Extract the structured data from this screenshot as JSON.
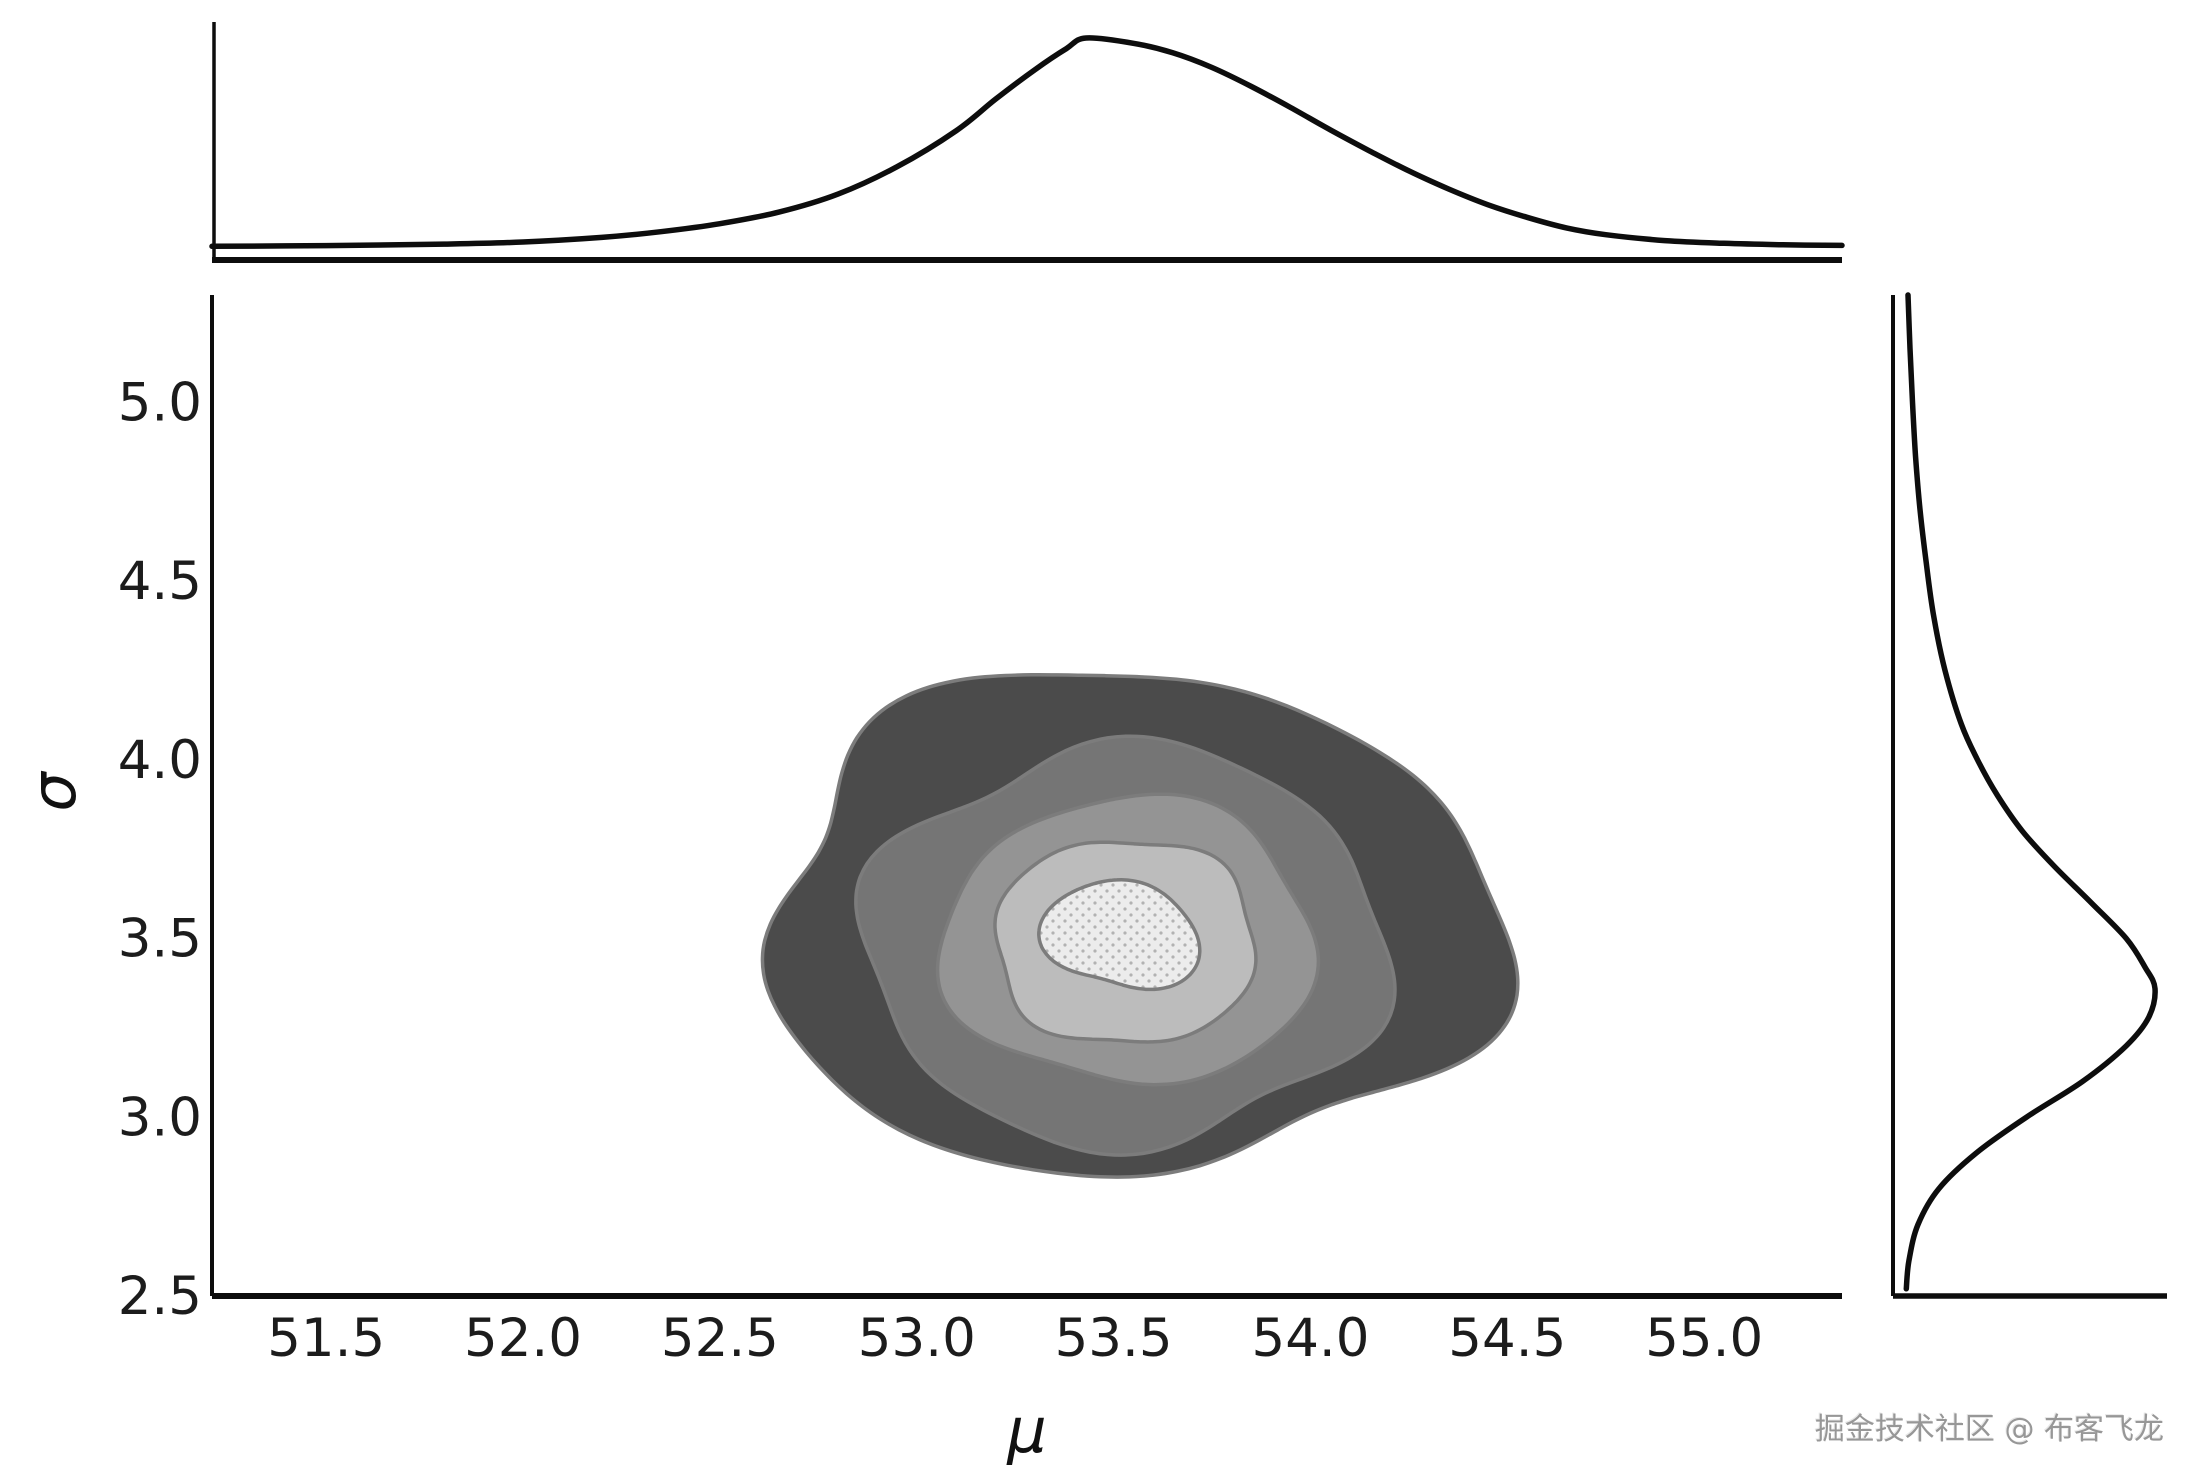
{
  "figure": {
    "xlabel": "μ",
    "ylabel": "σ",
    "watermark": "掘金技术社区 @ 布客飞龙"
  },
  "chart_data": {
    "type": "joint-kde-contour",
    "title": "",
    "xlabel": "μ",
    "ylabel": "σ",
    "xlim": [
      51.21,
      55.35
    ],
    "ylim": [
      2.5,
      5.3
    ],
    "x_ticks": [
      51.5,
      52.0,
      52.5,
      53.0,
      53.5,
      54.0,
      54.5,
      55.0
    ],
    "y_ticks": [
      2.5,
      3.0,
      3.5,
      4.0,
      4.5,
      5.0
    ],
    "grid": false,
    "legend": false,
    "background": "#ffffff",
    "curve_color": "#0d0d0d",
    "text_color": "#1c1c1c",
    "contour": {
      "center": {
        "mu": 53.53,
        "sigma": 3.5
      },
      "edge_color": "#7c7c7c",
      "stipple": {
        "bg": "#ececec",
        "dot": "#b2b2b2"
      },
      "levels": [
        {
          "fill": "#4b4b4b",
          "cx": 53.54,
          "cy": 3.54,
          "rx": 0.93,
          "ry": 0.7,
          "wobble": [
            [
              0.055,
              3,
              0.5
            ],
            [
              0.04,
              5,
              1.8
            ],
            [
              0.02,
              7,
              3.0
            ]
          ]
        },
        {
          "fill": "#757575",
          "cx": 53.53,
          "cy": 3.48,
          "rx": 0.66,
          "ry": 0.555,
          "wobble": [
            [
              0.05,
              4,
              1.0
            ],
            [
              0.035,
              6,
              2.5
            ]
          ]
        },
        {
          "fill": "#949494",
          "cx": 53.54,
          "cy": 3.49,
          "rx": 0.475,
          "ry": 0.4,
          "wobble": [
            [
              0.045,
              3,
              2.2
            ],
            [
              0.03,
              5,
              0.7
            ]
          ]
        },
        {
          "fill": "#bcbcbc",
          "cx": 53.53,
          "cy": 3.49,
          "rx": 0.335,
          "ry": 0.29,
          "wobble": [
            [
              0.04,
              4,
              2.8
            ],
            [
              0.025,
              6,
              1.2
            ]
          ]
        },
        {
          "fill": "stipple",
          "cx": 53.52,
          "cy": 3.51,
          "rx": 0.185,
          "ry": 0.16,
          "wobble": [
            [
              0.12,
              2,
              0.8
            ],
            [
              0.07,
              3,
              2.4
            ]
          ]
        }
      ]
    },
    "top_marginal": {
      "variable": "μ",
      "points": [
        [
          51.21,
          0.013
        ],
        [
          51.5,
          0.016
        ],
        [
          51.8,
          0.023
        ],
        [
          52.0,
          0.033
        ],
        [
          52.2,
          0.055
        ],
        [
          52.35,
          0.082
        ],
        [
          52.5,
          0.12
        ],
        [
          52.65,
          0.175
        ],
        [
          52.8,
          0.26
        ],
        [
          52.95,
          0.39
        ],
        [
          53.1,
          0.56
        ],
        [
          53.2,
          0.71
        ],
        [
          53.3,
          0.85
        ],
        [
          53.38,
          0.95
        ],
        [
          53.43,
          1.0
        ],
        [
          53.55,
          0.975
        ],
        [
          53.65,
          0.93
        ],
        [
          53.75,
          0.86
        ],
        [
          53.85,
          0.77
        ],
        [
          53.95,
          0.67
        ],
        [
          54.05,
          0.565
        ],
        [
          54.15,
          0.465
        ],
        [
          54.25,
          0.37
        ],
        [
          54.35,
          0.285
        ],
        [
          54.45,
          0.21
        ],
        [
          54.55,
          0.15
        ],
        [
          54.65,
          0.1
        ],
        [
          54.75,
          0.068
        ],
        [
          54.9,
          0.04
        ],
        [
          55.05,
          0.027
        ],
        [
          55.2,
          0.02
        ],
        [
          55.35,
          0.017
        ]
      ]
    },
    "right_marginal": {
      "variable": "σ",
      "points": [
        [
          5.3,
          0.012
        ],
        [
          5.15,
          0.02
        ],
        [
          5.0,
          0.03
        ],
        [
          4.85,
          0.042
        ],
        [
          4.7,
          0.06
        ],
        [
          4.55,
          0.085
        ],
        [
          4.4,
          0.115
        ],
        [
          4.25,
          0.16
        ],
        [
          4.1,
          0.225
        ],
        [
          4.0,
          0.29
        ],
        [
          3.9,
          0.37
        ],
        [
          3.8,
          0.47
        ],
        [
          3.7,
          0.6
        ],
        [
          3.6,
          0.745
        ],
        [
          3.5,
          0.885
        ],
        [
          3.42,
          0.96
        ],
        [
          3.36,
          1.0
        ],
        [
          3.28,
          0.975
        ],
        [
          3.2,
          0.885
        ],
        [
          3.1,
          0.71
        ],
        [
          3.0,
          0.485
        ],
        [
          2.9,
          0.285
        ],
        [
          2.8,
          0.135
        ],
        [
          2.7,
          0.052
        ],
        [
          2.6,
          0.016
        ],
        [
          2.52,
          0.005
        ]
      ]
    }
  }
}
